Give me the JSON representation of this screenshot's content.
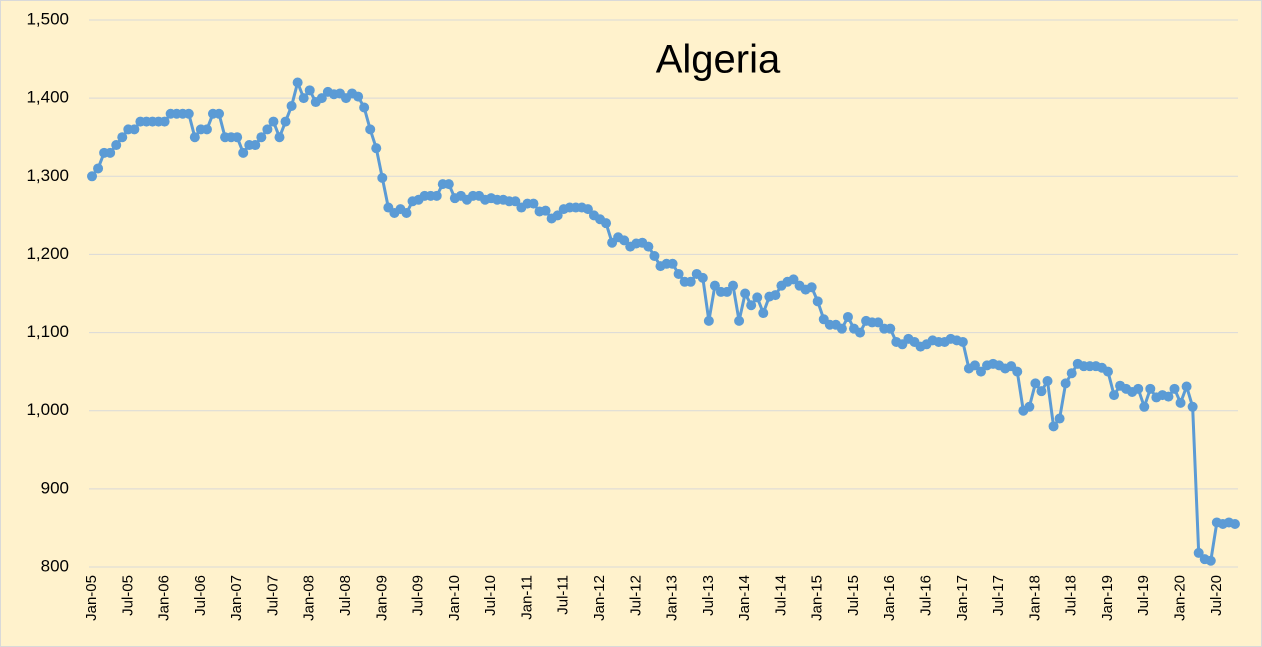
{
  "chart_data": {
    "type": "line",
    "title": "Algeria",
    "categories": [
      "Jan-05",
      null,
      null,
      null,
      null,
      null,
      "Jul-05",
      null,
      null,
      null,
      null,
      null,
      "Jan-06",
      null,
      null,
      null,
      null,
      null,
      "Jul-06",
      null,
      null,
      null,
      null,
      null,
      "Jan-07",
      null,
      null,
      null,
      null,
      null,
      "Jul-07",
      null,
      null,
      null,
      null,
      null,
      "Jan-08",
      null,
      null,
      null,
      null,
      null,
      "Jul-08",
      null,
      null,
      null,
      null,
      null,
      "Jan-09",
      null,
      null,
      null,
      null,
      null,
      "Jul-09",
      null,
      null,
      null,
      null,
      null,
      "Jan-10",
      null,
      null,
      null,
      null,
      null,
      "Jul-10",
      null,
      null,
      null,
      null,
      null,
      "Jan-11",
      null,
      null,
      null,
      null,
      null,
      "Jul-11",
      null,
      null,
      null,
      null,
      null,
      "Jan-12",
      null,
      null,
      null,
      null,
      null,
      "Jul-12",
      null,
      null,
      null,
      null,
      null,
      "Jan-13",
      null,
      null,
      null,
      null,
      null,
      "Jul-13",
      null,
      null,
      null,
      null,
      null,
      "Jan-14",
      null,
      null,
      null,
      null,
      null,
      "Jul-14",
      null,
      null,
      null,
      null,
      null,
      "Jan-15",
      null,
      null,
      null,
      null,
      null,
      "Jul-15",
      null,
      null,
      null,
      null,
      null,
      "Jan-16",
      null,
      null,
      null,
      null,
      null,
      "Jul-16",
      null,
      null,
      null,
      null,
      null,
      "Jan-17",
      null,
      null,
      null,
      null,
      null,
      "Jul-17",
      null,
      null,
      null,
      null,
      null,
      "Jan-18",
      null,
      null,
      null,
      null,
      null,
      "Jul-18",
      null,
      null,
      null,
      null,
      null,
      "Jan-19",
      null,
      null,
      null,
      null,
      null,
      "Jul-19",
      null,
      null,
      null,
      null,
      null,
      "Jan-20",
      null,
      null,
      null,
      null,
      null,
      "Jul-20",
      null,
      null,
      null
    ],
    "values": [
      1300,
      1310,
      1330,
      1330,
      1340,
      1350,
      1360,
      1360,
      1370,
      1370,
      1370,
      1370,
      1370,
      1380,
      1380,
      1380,
      1380,
      1350,
      1360,
      1360,
      1380,
      1380,
      1350,
      1350,
      1350,
      1330,
      1340,
      1340,
      1350,
      1360,
      1370,
      1350,
      1370,
      1390,
      1420,
      1400,
      1410,
      1395,
      1400,
      1408,
      1405,
      1406,
      1400,
      1406,
      1402,
      1388,
      1360,
      1336,
      1298,
      1260,
      1253,
      1258,
      1253,
      1268,
      1270,
      1275,
      1275,
      1275,
      1290,
      1290,
      1272,
      1275,
      1270,
      1275,
      1275,
      1270,
      1272,
      1270,
      1270,
      1268,
      1268,
      1260,
      1265,
      1265,
      1255,
      1256,
      1246,
      1250,
      1258,
      1260,
      1260,
      1260,
      1258,
      1250,
      1245,
      1240,
      1215,
      1222,
      1218,
      1210,
      1214,
      1215,
      1210,
      1198,
      1185,
      1188,
      1188,
      1175,
      1165,
      1165,
      1175,
      1170,
      1115,
      1160,
      1152,
      1152,
      1160,
      1115,
      1150,
      1135,
      1145,
      1125,
      1146,
      1148,
      1160,
      1165,
      1168,
      1160,
      1155,
      1158,
      1140,
      1117,
      1110,
      1110,
      1105,
      1120,
      1105,
      1100,
      1115,
      1113,
      1113,
      1105,
      1105,
      1088,
      1085,
      1092,
      1088,
      1082,
      1085,
      1090,
      1088,
      1088,
      1092,
      1090,
      1088,
      1054,
      1058,
      1050,
      1058,
      1060,
      1058,
      1054,
      1057,
      1050,
      1000,
      1005,
      1035,
      1025,
      1038,
      980,
      990,
      1035,
      1048,
      1060,
      1057,
      1057,
      1057,
      1055,
      1050,
      1020,
      1032,
      1028,
      1024,
      1028,
      1005,
      1028,
      1017,
      1020,
      1018,
      1028,
      1010,
      1031,
      1005,
      818,
      810,
      808,
      857,
      855,
      857,
      855
    ],
    "color": "#5b9bd5",
    "ylim": [
      800,
      1500
    ],
    "yticks": [
      800,
      900,
      {
        "value": 1000,
        "label": "1,000"
      },
      {
        "value": 1100,
        "label": "1,100"
      },
      {
        "value": 1200,
        "label": "1,200"
      },
      {
        "value": 1300,
        "label": "1,300"
      },
      {
        "value": 1400,
        "label": "1,400"
      },
      {
        "value": 1500,
        "label": "1,500"
      }
    ],
    "grid": true
  }
}
